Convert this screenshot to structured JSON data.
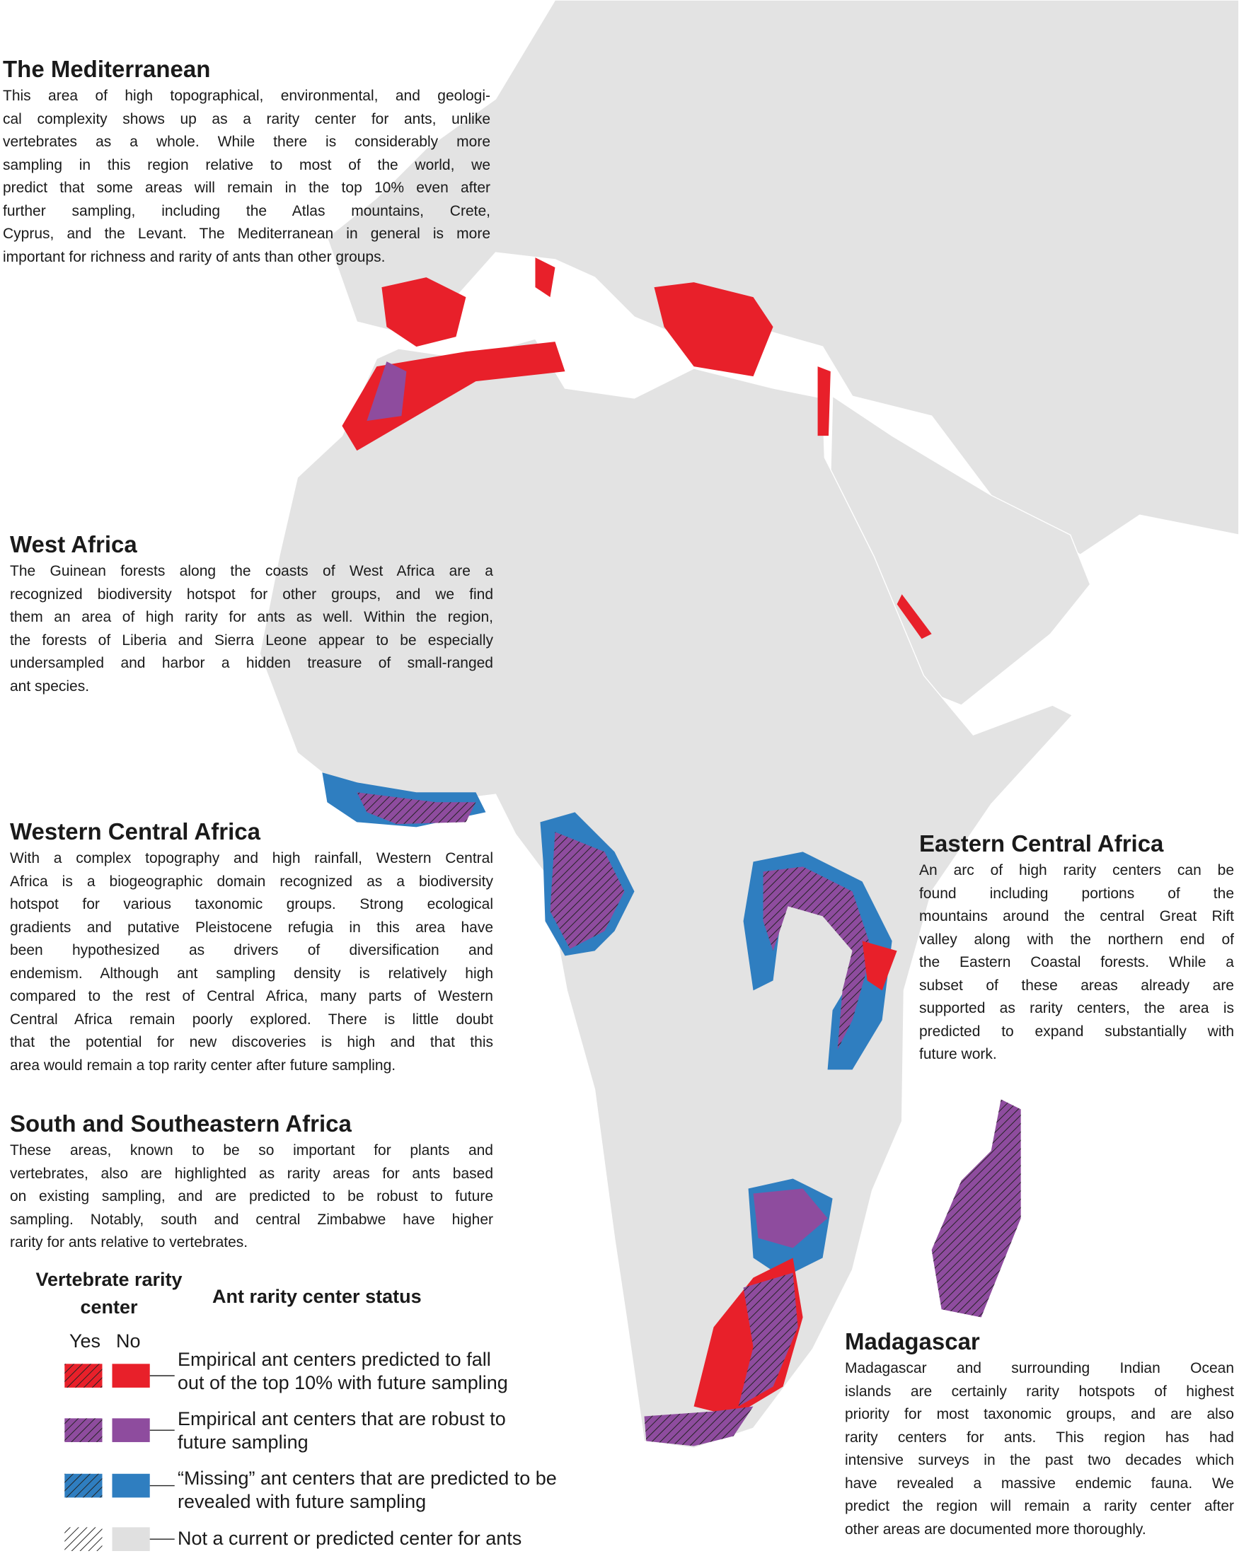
{
  "sections": [
    {
      "title": "The Mediterranean",
      "lines": [
        "This area of high topographical, environmental, and geologi-",
        "cal complexity shows up as a rarity center for ants, unlike",
        "vertebrates as a whole.  While there is considerably more",
        "sampling in this region relative to most of the world, we",
        "predict that some areas will remain in the top 10% even after",
        "further sampling, including the Atlas mountains, Crete,",
        "Cyprus, and the Levant.  The Mediterranean in general is more",
        "important for richness and rarity of ants than other groups."
      ]
    },
    {
      "title": "West Africa",
      "lines": [
        "The Guinean forests along the coasts of West Africa are a",
        "recognized biodiversity hotspot for other groups, and we find",
        "them an area of high rarity for ants as well.  Within the region,",
        "the forests of Liberia and Sierra Leone appear to be especially",
        "undersampled and harbor a hidden treasure of small-ranged",
        "ant species."
      ]
    },
    {
      "title": "Western Central Africa",
      "lines": [
        "With a complex topography and high rainfall, Western Central",
        "Africa is a biogeographic domain recognized as a biodiversity",
        "hotspot for various taxonomic groups. Strong ecological",
        "gradients and putative Pleistocene refugia in this area have",
        "been hypothesized as drivers of diversification and",
        "endemism. Although ant sampling density is relatively high",
        "compared to the rest of Central Africa, many parts of Western",
        "Central Africa remain poorly explored. There is little doubt",
        "that the potential for new discoveries is high and that this",
        "area would remain a top rarity center after future sampling."
      ]
    },
    {
      "title": "South and Southeastern Africa",
      "lines": [
        "These areas, known to be so important for plants and",
        "vertebrates, also are highlighted as rarity areas for ants based",
        "on existing sampling, and are predicted to be robust to future",
        "sampling.  Notably, south and central Zimbabwe have higher",
        "rarity for ants relative to vertebrates."
      ]
    },
    {
      "title": "Eastern Central Africa",
      "lines": [
        "An arc of high rarity centers can be",
        "found including portions of the",
        "mountains around the central Great Rift",
        "valley along with the northern end of",
        "the Eastern Coastal forests.  While a",
        "subset of these areas already are",
        "supported as rarity centers,  the area is",
        "predicted to expand substantially with",
        "future work."
      ]
    },
    {
      "title": "Madagascar",
      "lines": [
        "Madagascar and surrounding  Indian Ocean",
        "islands are certainly rarity hotspots of highest",
        "priority for most taxonomic groups, and are also",
        "rarity centers for ants. This region has had",
        "intensive surveys in the past two decades which",
        "have revealed a massive endemic fauna.  We",
        "predict the region will remain a rarity center after",
        "other areas are documented more thoroughly."
      ]
    }
  ],
  "legend": {
    "vertebrate_title": "Vertebrate rarity center",
    "ant_title": "Ant rarity center status",
    "yes": "Yes",
    "no": "No",
    "items": [
      {
        "lines": [
          "Empirical ant centers predicted to fall",
          "out of the top 10% with future sampling"
        ]
      },
      {
        "lines": [
          "Empirical ant centers that are robust to",
          "future sampling"
        ]
      },
      {
        "lines": [
          "“Missing” ant centers that are predicted to be",
          "revealed with future sampling"
        ]
      },
      {
        "lines": [
          "Not a current or predicted center for ants"
        ]
      }
    ]
  }
}
